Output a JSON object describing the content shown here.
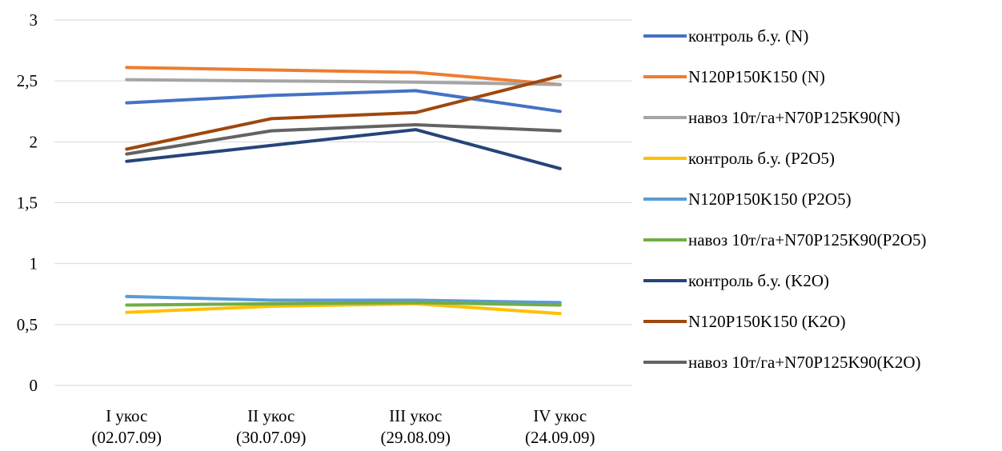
{
  "chart_data": {
    "type": "line",
    "title": "",
    "xlabel": "",
    "ylabel": "",
    "ylim": [
      0,
      3
    ],
    "yticks": [
      "0",
      "0,5",
      "1",
      "1,5",
      "2",
      "2,5",
      "3"
    ],
    "grid": true,
    "legend_position": "right",
    "categories": [
      [
        "I укос",
        "(02.07.09)"
      ],
      [
        "II  укос",
        "(30.07.09)"
      ],
      [
        "III укос",
        "(29.08.09)"
      ],
      [
        "IV укос",
        "(24.09.09)"
      ]
    ],
    "series": [
      {
        "name": "контроль б.у. (N)",
        "color": "#4472C4",
        "values": [
          2.32,
          2.38,
          2.42,
          2.25
        ]
      },
      {
        "name": "N120P150K150 (N)",
        "color": "#ED7D31",
        "values": [
          2.61,
          2.59,
          2.57,
          2.47
        ]
      },
      {
        "name": "навоз 10т/га+N70P125K90(N)",
        "color": "#A5A5A5",
        "values": [
          2.51,
          2.5,
          2.49,
          2.47
        ]
      },
      {
        "name": "контроль б.у.  (P2O5)",
        "color": "#FFC000",
        "values": [
          0.6,
          0.65,
          0.67,
          0.59
        ]
      },
      {
        "name": "N120P150K150 (P2O5)",
        "color": "#5B9BD5",
        "values": [
          0.73,
          0.7,
          0.7,
          0.68
        ]
      },
      {
        "name": "навоз 10т/га+N70P125K90(P2O5)",
        "color": "#70AD47",
        "values": [
          0.66,
          0.67,
          0.68,
          0.66
        ]
      },
      {
        "name": "контроль б.у.  (K2O)",
        "color": "#264478",
        "values": [
          1.84,
          1.97,
          2.1,
          1.78
        ]
      },
      {
        "name": "N120P150K150 (K2O)",
        "color": "#9E480E",
        "values": [
          1.94,
          2.19,
          2.24,
          2.54
        ]
      },
      {
        "name": "навоз 10т/га+N70P125K90(K2O)",
        "color": "#636363",
        "values": [
          1.9,
          2.09,
          2.14,
          2.09
        ]
      }
    ]
  }
}
